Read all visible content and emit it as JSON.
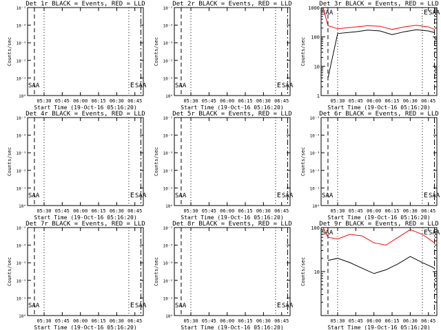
{
  "x_label": "Start Time (19-Oct-16 05:16:20)",
  "y_label": "Counts/sec",
  "x_ticks": [
    "05:30",
    "05:45",
    "06:00",
    "06:15",
    "06:30",
    "06:45"
  ],
  "log_y_ticks_small": [
    "10⁶",
    "10⁻¹",
    "10⁻²",
    "10⁻³",
    "10⁻⁴",
    "10⁻⁵"
  ],
  "colors": {
    "events": "#000000",
    "lld": "#ff0000"
  },
  "chart_data": [
    {
      "type": "line",
      "title": "Det 1r BLACK = Events, RED = LLD",
      "yscale": "log",
      "ylim": [
        1e-06,
        1e-05
      ],
      "xlim": [
        "05:16:20",
        "06:52:00"
      ],
      "series": [],
      "markers": [
        "SAA",
        "E",
        "SAA"
      ]
    },
    {
      "type": "line",
      "title": "Det 2r BLACK = Events, RED = LLD",
      "yscale": "log",
      "ylim": [
        1e-06,
        1e-05
      ],
      "xlim": [
        "05:16:20",
        "06:52:00"
      ],
      "series": [],
      "markers": [
        "SAA",
        "E",
        "SAA"
      ]
    },
    {
      "type": "line",
      "title": "Det 3r BLACK = Events, RED = LLD",
      "yscale": "log",
      "ylim": [
        1,
        1000
      ],
      "yticks": [
        "1000",
        "100",
        "10",
        "1"
      ],
      "xlim": [
        "05:16:20",
        "06:52:00"
      ],
      "series": [
        {
          "name": "Events",
          "color": "#000000",
          "x": [
            "05:22",
            "05:30",
            "05:45",
            "05:55",
            "06:05",
            "06:15",
            "06:25",
            "06:35",
            "06:45",
            "06:50"
          ],
          "y": [
            4,
            130,
            150,
            170,
            160,
            120,
            150,
            175,
            160,
            140
          ]
        },
        {
          "name": "LLD",
          "color": "#ff0000",
          "x": [
            "05:18",
            "05:22",
            "05:30",
            "05:45",
            "05:55",
            "06:05",
            "06:15",
            "06:25",
            "06:35",
            "06:45",
            "06:50"
          ],
          "y": [
            1000,
            240,
            190,
            220,
            240,
            230,
            180,
            220,
            250,
            220,
            180
          ]
        }
      ],
      "markers": [
        "SAA",
        "E",
        "SAA"
      ]
    },
    {
      "type": "line",
      "title": "Det 4r BLACK = Events, RED = LLD",
      "yscale": "log",
      "ylim": [
        1e-06,
        1e-05
      ],
      "xlim": [
        "05:16:20",
        "06:52:00"
      ],
      "series": [],
      "markers": [
        "SAA",
        "E",
        "SAA"
      ]
    },
    {
      "type": "line",
      "title": "Det 5r BLACK = Events, RED = LLD",
      "yscale": "log",
      "ylim": [
        1e-06,
        1e-05
      ],
      "xlim": [
        "05:16:20",
        "06:52:00"
      ],
      "series": [],
      "markers": [
        "SAA",
        "E",
        "SAA"
      ]
    },
    {
      "type": "line",
      "title": "Det 6r BLACK = Events, RED = LLD",
      "yscale": "log",
      "ylim": [
        1e-06,
        1e-05
      ],
      "xlim": [
        "05:16:20",
        "06:52:00"
      ],
      "series": [],
      "markers": [
        "SAA",
        "E",
        "SAA"
      ]
    },
    {
      "type": "line",
      "title": "Det 7r BLACK = Events, RED = LLD",
      "yscale": "log",
      "ylim": [
        1e-06,
        1e-05
      ],
      "xlim": [
        "05:16:20",
        "06:52:00"
      ],
      "series": [],
      "markers": [
        "SAA",
        "E",
        "SAA"
      ]
    },
    {
      "type": "line",
      "title": "Det 8r BLACK = Events, RED = LLD",
      "yscale": "log",
      "ylim": [
        1e-06,
        1e-05
      ],
      "xlim": [
        "05:16:20",
        "06:52:00"
      ],
      "series": [],
      "markers": [
        "SAA",
        "E",
        "SAA"
      ]
    },
    {
      "type": "line",
      "title": "Det 9r BLACK = Events, RED = LLD",
      "yscale": "log",
      "ylim": [
        1,
        100
      ],
      "yticks": [
        "100",
        "10"
      ],
      "xlim": [
        "05:16:20",
        "06:52:00"
      ],
      "series": [
        {
          "name": "Events",
          "color": "#000000",
          "x": [
            "05:22",
            "05:30",
            "05:40",
            "05:50",
            "06:00",
            "06:10",
            "06:20",
            "06:30",
            "06:40",
            "06:50"
          ],
          "y": [
            18,
            20,
            16,
            12,
            9,
            11,
            15,
            22,
            16,
            12
          ]
        },
        {
          "name": "LLD",
          "color": "#ff0000",
          "x": [
            "05:18",
            "05:22",
            "05:30",
            "05:40",
            "05:50",
            "06:00",
            "06:10",
            "06:20",
            "06:30",
            "06:40",
            "06:50"
          ],
          "y": [
            100,
            60,
            55,
            70,
            65,
            45,
            40,
            60,
            90,
            70,
            45
          ]
        }
      ],
      "markers": [
        "SAA",
        "E",
        "SAA"
      ]
    }
  ]
}
